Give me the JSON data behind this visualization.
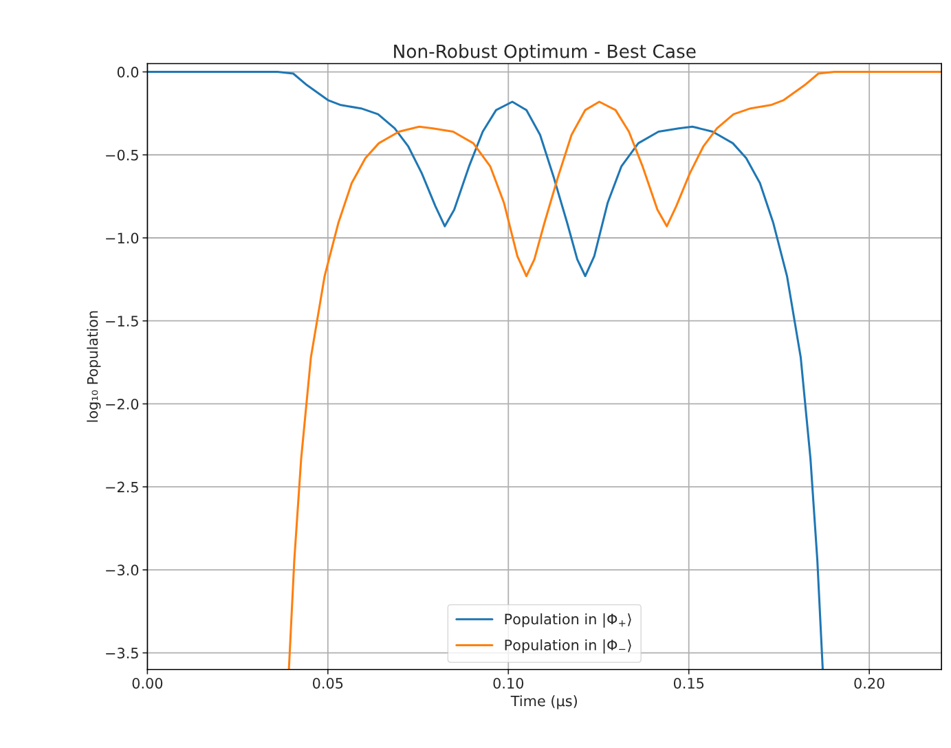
{
  "chart_data": {
    "type": "line",
    "title": "Non-Robust Optimum - Best Case",
    "xlabel": "Time (μs)",
    "ylabel": "log₁₀ Population",
    "series": [
      {
        "name": "Population in |Φ$_{+}$⟩",
        "color": "#1f77b4",
        "x": [
          0,
          0.036,
          0.0404,
          0.0442,
          0.05,
          0.0536,
          0.0592,
          0.0639,
          0.0685,
          0.0723,
          0.076,
          0.0798,
          0.0824,
          0.085,
          0.0891,
          0.0929,
          0.0966,
          0.1011,
          0.105,
          0.1088,
          0.1125,
          0.1163,
          0.1191,
          0.1213,
          0.1238,
          0.1275,
          0.1313,
          0.136,
          0.1416,
          0.1472,
          0.151,
          0.1566,
          0.1622,
          0.1659,
          0.1697,
          0.1734,
          0.1772,
          0.181,
          0.1837,
          0.1856,
          0.1871
        ],
        "values": [
          0,
          0,
          -0.01,
          -0.08,
          -0.17,
          -0.2,
          -0.22,
          -0.255,
          -0.34,
          -0.45,
          -0.61,
          -0.81,
          -0.93,
          -0.83,
          -0.57,
          -0.36,
          -0.23,
          -0.18,
          -0.23,
          -0.38,
          -0.63,
          -0.91,
          -1.13,
          -1.23,
          -1.11,
          -0.79,
          -0.57,
          -0.43,
          -0.36,
          -0.34,
          -0.33,
          -0.36,
          -0.43,
          -0.52,
          -0.67,
          -0.91,
          -1.23,
          -1.72,
          -2.33,
          -2.94,
          -3.6
        ]
      },
      {
        "name": "Population in |Φ$_{−}$⟩",
        "color": "#ff7f0e",
        "x": [
          0.0392,
          0.0407,
          0.0426,
          0.0453,
          0.0491,
          0.0529,
          0.0566,
          0.0604,
          0.0641,
          0.0697,
          0.0753,
          0.0791,
          0.0847,
          0.0903,
          0.095,
          0.0988,
          0.1025,
          0.105,
          0.1072,
          0.11,
          0.1138,
          0.1175,
          0.1213,
          0.1252,
          0.1297,
          0.1334,
          0.1372,
          0.1413,
          0.1439,
          0.1465,
          0.1503,
          0.154,
          0.1578,
          0.1624,
          0.1671,
          0.1727,
          0.1763,
          0.1821,
          0.1859,
          0.1903,
          0.22
        ],
        "values": [
          -3.6,
          -2.94,
          -2.33,
          -1.72,
          -1.23,
          -0.91,
          -0.67,
          -0.52,
          -0.43,
          -0.36,
          -0.33,
          -0.34,
          -0.36,
          -0.43,
          -0.57,
          -0.79,
          -1.11,
          -1.23,
          -1.13,
          -0.91,
          -0.63,
          -0.38,
          -0.23,
          -0.18,
          -0.23,
          -0.36,
          -0.57,
          -0.83,
          -0.93,
          -0.81,
          -0.61,
          -0.45,
          -0.34,
          -0.255,
          -0.22,
          -0.2,
          -0.17,
          -0.08,
          -0.01,
          0,
          0
        ]
      }
    ],
    "xlim": [
      0,
      0.22
    ],
    "ylim": [
      -3.6,
      0.05
    ],
    "xticks": [
      {
        "value": 0,
        "label": "0.00"
      },
      {
        "value": 0.05,
        "label": "0.05"
      },
      {
        "value": 0.1,
        "label": "0.10"
      },
      {
        "value": 0.15,
        "label": "0.15"
      },
      {
        "value": 0.2,
        "label": "0.20"
      }
    ],
    "yticks": [
      {
        "value": 0,
        "label": "0.0"
      },
      {
        "value": -0.5,
        "label": "−0.5"
      },
      {
        "value": -1,
        "label": "−1.0"
      },
      {
        "value": -1.5,
        "label": "−1.5"
      },
      {
        "value": -2,
        "label": "−2.0"
      },
      {
        "value": -2.5,
        "label": "−2.5"
      },
      {
        "value": -3,
        "label": "−3.0"
      },
      {
        "value": -3.5,
        "label": "−3.5"
      }
    ],
    "grid": true,
    "legend": "bottom",
    "line_style": "solid",
    "marker": "none"
  }
}
